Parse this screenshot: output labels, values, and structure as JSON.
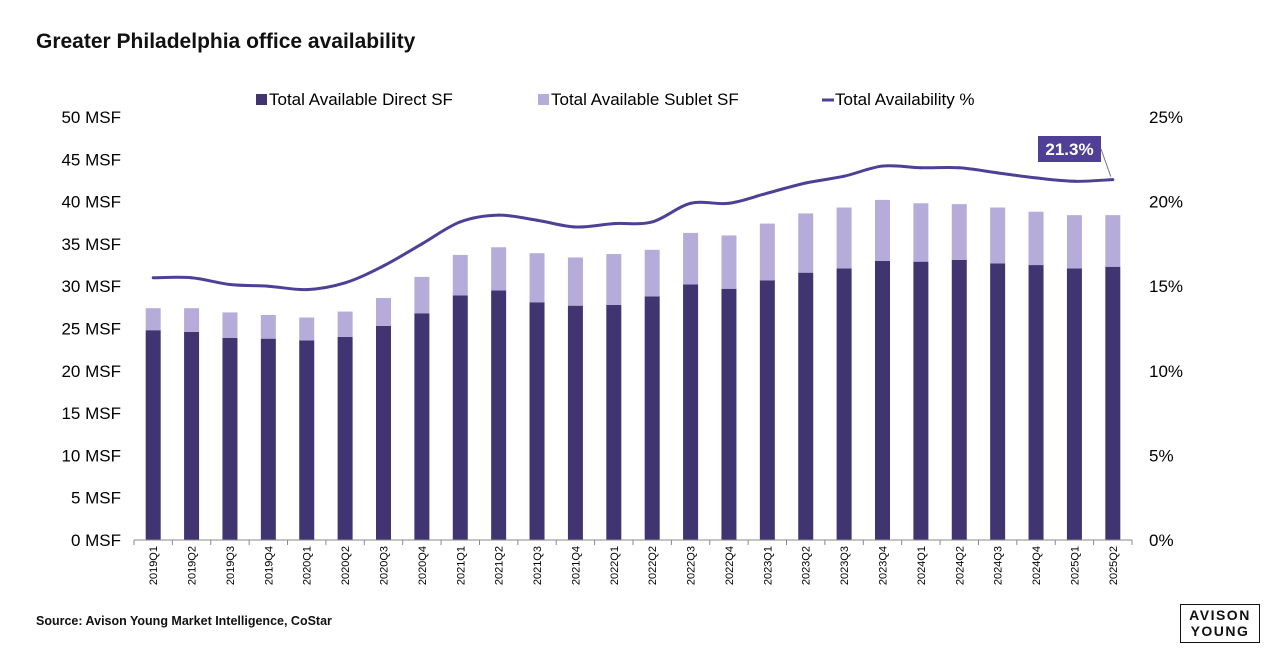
{
  "title": "Greater Philadelphia office availability",
  "source": "Source: Avison Young Market Intelligence, CoStar",
  "logo": {
    "line1": "AVISON",
    "line2": "YOUNG"
  },
  "colors": {
    "direct": "#403570",
    "sublet": "#b6acd9",
    "line": "#4f3f96",
    "callout": "#4f3f96",
    "axis": "#888888"
  },
  "chart_data": {
    "type": "bar",
    "stacked": true,
    "categories": [
      "2019Q1",
      "2019Q2",
      "2019Q3",
      "2019Q4",
      "2020Q1",
      "2020Q2",
      "2020Q3",
      "2020Q4",
      "2021Q1",
      "2021Q2",
      "2021Q3",
      "2021Q4",
      "2022Q1",
      "2022Q2",
      "2022Q3",
      "2022Q4",
      "2023Q1",
      "2023Q2",
      "2023Q3",
      "2023Q4",
      "2024Q1",
      "2024Q2",
      "2024Q3",
      "2024Q4",
      "2025Q1",
      "2025Q2"
    ],
    "series": [
      {
        "name": "Total Available Direct SF",
        "type": "bar",
        "axis": "left",
        "values": [
          24.8,
          24.6,
          23.9,
          23.8,
          23.6,
          24.0,
          25.3,
          26.8,
          28.9,
          29.5,
          28.1,
          27.7,
          27.8,
          28.8,
          30.2,
          29.7,
          30.7,
          31.6,
          32.1,
          33.0,
          32.9,
          33.1,
          32.7,
          32.5,
          32.1,
          32.3
        ]
      },
      {
        "name": "Total Available Sublet SF",
        "type": "bar",
        "axis": "left",
        "values": [
          2.6,
          2.8,
          3.0,
          2.8,
          2.7,
          3.0,
          3.3,
          4.3,
          4.8,
          5.1,
          5.8,
          5.7,
          6.0,
          5.5,
          6.1,
          6.3,
          6.7,
          7.0,
          7.2,
          7.2,
          6.9,
          6.6,
          6.6,
          6.3,
          6.3,
          6.1
        ]
      },
      {
        "name": "Total Availability %",
        "type": "line",
        "axis": "right",
        "values": [
          15.5,
          15.5,
          15.1,
          15.0,
          14.8,
          15.2,
          16.2,
          17.5,
          18.8,
          19.2,
          18.9,
          18.5,
          18.7,
          18.8,
          19.9,
          19.9,
          20.5,
          21.1,
          21.5,
          22.1,
          22.0,
          22.0,
          21.7,
          21.4,
          21.2,
          21.3
        ]
      }
    ],
    "y_left": {
      "min": 0,
      "max": 50,
      "step": 5,
      "tick_labels": [
        "0 MSF",
        "5 MSF",
        "10 MSF",
        "15 MSF",
        "20 MSF",
        "25 MSF",
        "30 MSF",
        "35 MSF",
        "40 MSF",
        "45 MSF",
        "50 MSF"
      ]
    },
    "y_right": {
      "min": 0,
      "max": 25,
      "step": 5,
      "tick_labels": [
        "0%",
        "5%",
        "10%",
        "15%",
        "20%",
        "25%"
      ]
    },
    "annotation": {
      "label": "21.3%",
      "category": "2025Q2",
      "value": 21.3
    },
    "legend_position": "top-center",
    "grid": false
  }
}
